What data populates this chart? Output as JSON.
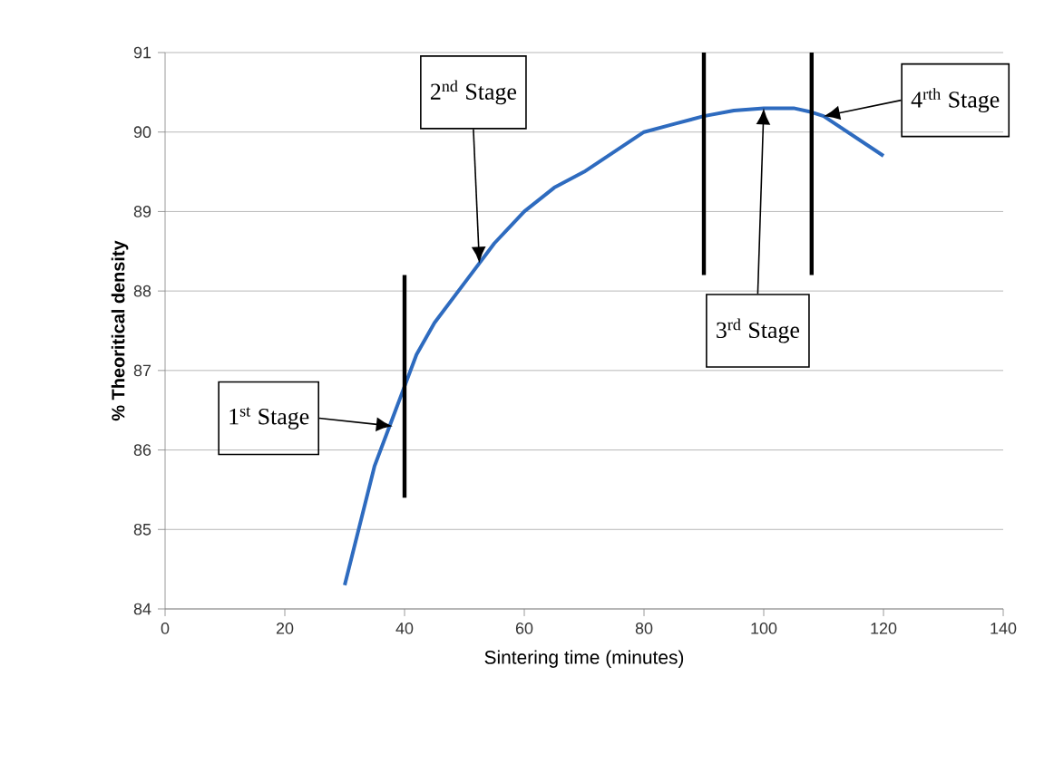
{
  "chart_data": {
    "type": "line",
    "xlabel": "Sintering time (minutes)",
    "ylabel": "% Theoritical density",
    "xlim": [
      0,
      140
    ],
    "xticks": [
      0,
      20,
      40,
      60,
      80,
      100,
      120,
      140
    ],
    "ylim": [
      84,
      91
    ],
    "yticks": [
      84,
      85,
      86,
      87,
      88,
      89,
      90,
      91
    ],
    "grid": "y",
    "marker": "none",
    "line_style": "solid",
    "series": [
      {
        "color": "#2e6bbf",
        "x": [
          30,
          32,
          35,
          38,
          40,
          42,
          45,
          50,
          55,
          60,
          65,
          70,
          75,
          80,
          85,
          90,
          95,
          100,
          105,
          108,
          110,
          115,
          120
        ],
        "values": [
          84.3,
          84.9,
          85.8,
          86.4,
          86.8,
          87.2,
          87.6,
          88.1,
          88.6,
          89.0,
          89.3,
          89.5,
          89.75,
          90.0,
          90.1,
          90.2,
          90.27,
          90.3,
          90.3,
          90.25,
          90.2,
          89.95,
          89.7
        ]
      }
    ],
    "ref_lines": [
      {
        "axis": "x",
        "value": 40,
        "color": "#000000"
      },
      {
        "axis": "x",
        "value": 90,
        "color": "#000000"
      },
      {
        "axis": "x",
        "value": 108,
        "color": "#000000"
      }
    ],
    "annotations": [
      {
        "text": "1$^{st}$ Stage",
        "x": 38,
        "y": 86.3
      },
      {
        "text": "2$^{nd}$ Stage",
        "x": 52.5,
        "y": 88.35
      },
      {
        "text": "3$^{rd}$ Stage",
        "x": 100,
        "y": 90.3
      },
      {
        "text": "4$^{rth}$ Stage",
        "x": 110,
        "y": 90.2
      }
    ]
  }
}
